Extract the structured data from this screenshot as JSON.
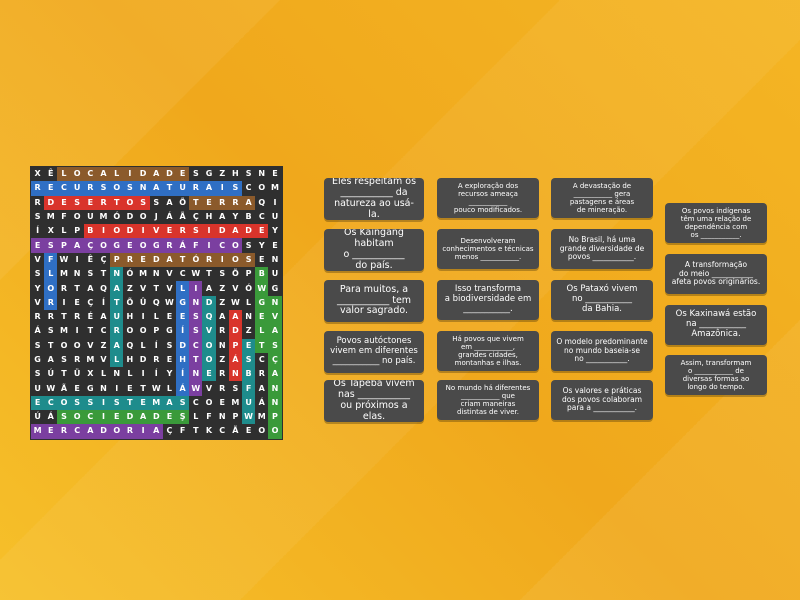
{
  "colors": {
    "none": "#2f2f2f",
    "blue": "#2f6fc4",
    "red": "#d9342b",
    "brown": "#8b5a2b",
    "purple": "#7b3fa0",
    "green": "#3a9a3a",
    "teal": "#1e8c8c"
  },
  "grid": {
    "rows": [
      "XÊLOCALIDADESGZHSNE",
      "RECURSOSNATURAISCOM",
      "RDESERTOSSAÕTERRAQI",
      "SMFOUMÓDOJÁÃÇHAYBCU",
      "ÍXLPBIODIVERSIDADEY",
      "ESPAÇOGEOGRÁFICOSYE",
      "VFWIÊÇPREDATÓRIOSEN",
      "SLMNSTNÓMNVCWTSÕPBU",
      "YORTAQAZVTVLIAZVÓWG",
      "VRIEÇÍTÕÛQWGNDZWLGN",
      "RRTRÉAUHILEESQAANEV",
      "ÁSMITCROOPGÍSVRDZLA",
      "STOOVZAQLÍSDCONPETS",
      "GASRMVLHDREHTOZÁSCÇ",
      "SÚTÜXLNLIÍYÍNERNBRA",
      "UWÃEGNIETWLÁWVRSFAN",
      "ECOSSISTEMASCOEMUÁN",
      "ÚÁSOCIEDADEŞLFNPWMP",
      "MERCADORIAÇFTKCÃEOO"
    ],
    "highlights": [
      {
        "row": 0,
        "from": 2,
        "to": 11,
        "color": "brown"
      },
      {
        "row": 1,
        "from": 0,
        "to": 15,
        "color": "blue"
      },
      {
        "row": 2,
        "from": 1,
        "to": 8,
        "color": "red"
      },
      {
        "row": 2,
        "from": 12,
        "to": 16,
        "color": "brown"
      },
      {
        "row": 4,
        "from": 4,
        "to": 17,
        "color": "red"
      },
      {
        "row": 5,
        "from": 0,
        "to": 15,
        "color": "purple"
      },
      {
        "row": 6,
        "from": 6,
        "to": 16,
        "color": "brown"
      },
      {
        "row": 16,
        "from": 0,
        "to": 11,
        "color": "teal"
      },
      {
        "row": 17,
        "from": 2,
        "to": 11,
        "color": "green"
      },
      {
        "row": 18,
        "from": 0,
        "to": 9,
        "color": "purple"
      },
      {
        "col": 1,
        "from": 6,
        "to": 9,
        "color": "blue"
      },
      {
        "col": 18,
        "from": 9,
        "to": 18,
        "color": "green"
      },
      {
        "col": 12,
        "from": 8,
        "to": 15,
        "color": "purple"
      },
      {
        "col": 11,
        "from": 8,
        "to": 15,
        "color": "blue"
      },
      {
        "col": 13,
        "from": 9,
        "to": 14,
        "color": "teal"
      },
      {
        "col": 6,
        "from": 7,
        "to": 13,
        "color": "teal"
      },
      {
        "col": 15,
        "from": 10,
        "to": 14,
        "color": "red"
      },
      {
        "col": 17,
        "from": 7,
        "to": 12,
        "color": "green"
      },
      {
        "col": 16,
        "from": 12,
        "to": 17,
        "color": "teal"
      }
    ]
  },
  "cards": [
    "Eles respeitam os\n___________ da\nnatureza ao usá-la.",
    "Os Kaingang habitam\no ___________\ndo país.",
    "Para muitos, a\n___________ tem\nvalor sagrado.",
    "Povos autóctones\nvivem em diferentes\n___________ no país.",
    "Os Tapeba vivem\nnas ___________\nou próximos a elas.",
    "A exploração dos\nrecursos ameaça\n___________\npouco modificados.",
    "Desenvolveram\nconhecimentos e técnicas\nmenos ___________.",
    "Isso transforma\na biodiversidade em\n___________.",
    "Há povos que vivem\nem ___________,\ngrandes cidades,\nmontanhas e ilhas.",
    "No mundo há diferentes\n___________ que\ncriam maneiras\ndistintas de viver.",
    "A devastação de\n___________ gera\npastagens e áreas\nde mineração.",
    "No Brasil, há uma\ngrande diversidade de\npovos ___________.",
    "Os Pataxó vivem\nno ___________\nda Bahia.",
    "O modelo predominante\nno mundo baseia-se\nno ___________.",
    "Os valores e práticas\ndos povos colaboram\npara a ___________.",
    "Os povos indígenas\ntêm uma relação de\ndependência com\nos ___________.",
    "A transformação\ndo meio ___________\nafeta povos originários.",
    "Os Kaxinawá estão\nna ___________\nAmazônica.",
    "Assim, transformam\no ___________ de\ndiversas formas ao\nlongo do tempo."
  ]
}
